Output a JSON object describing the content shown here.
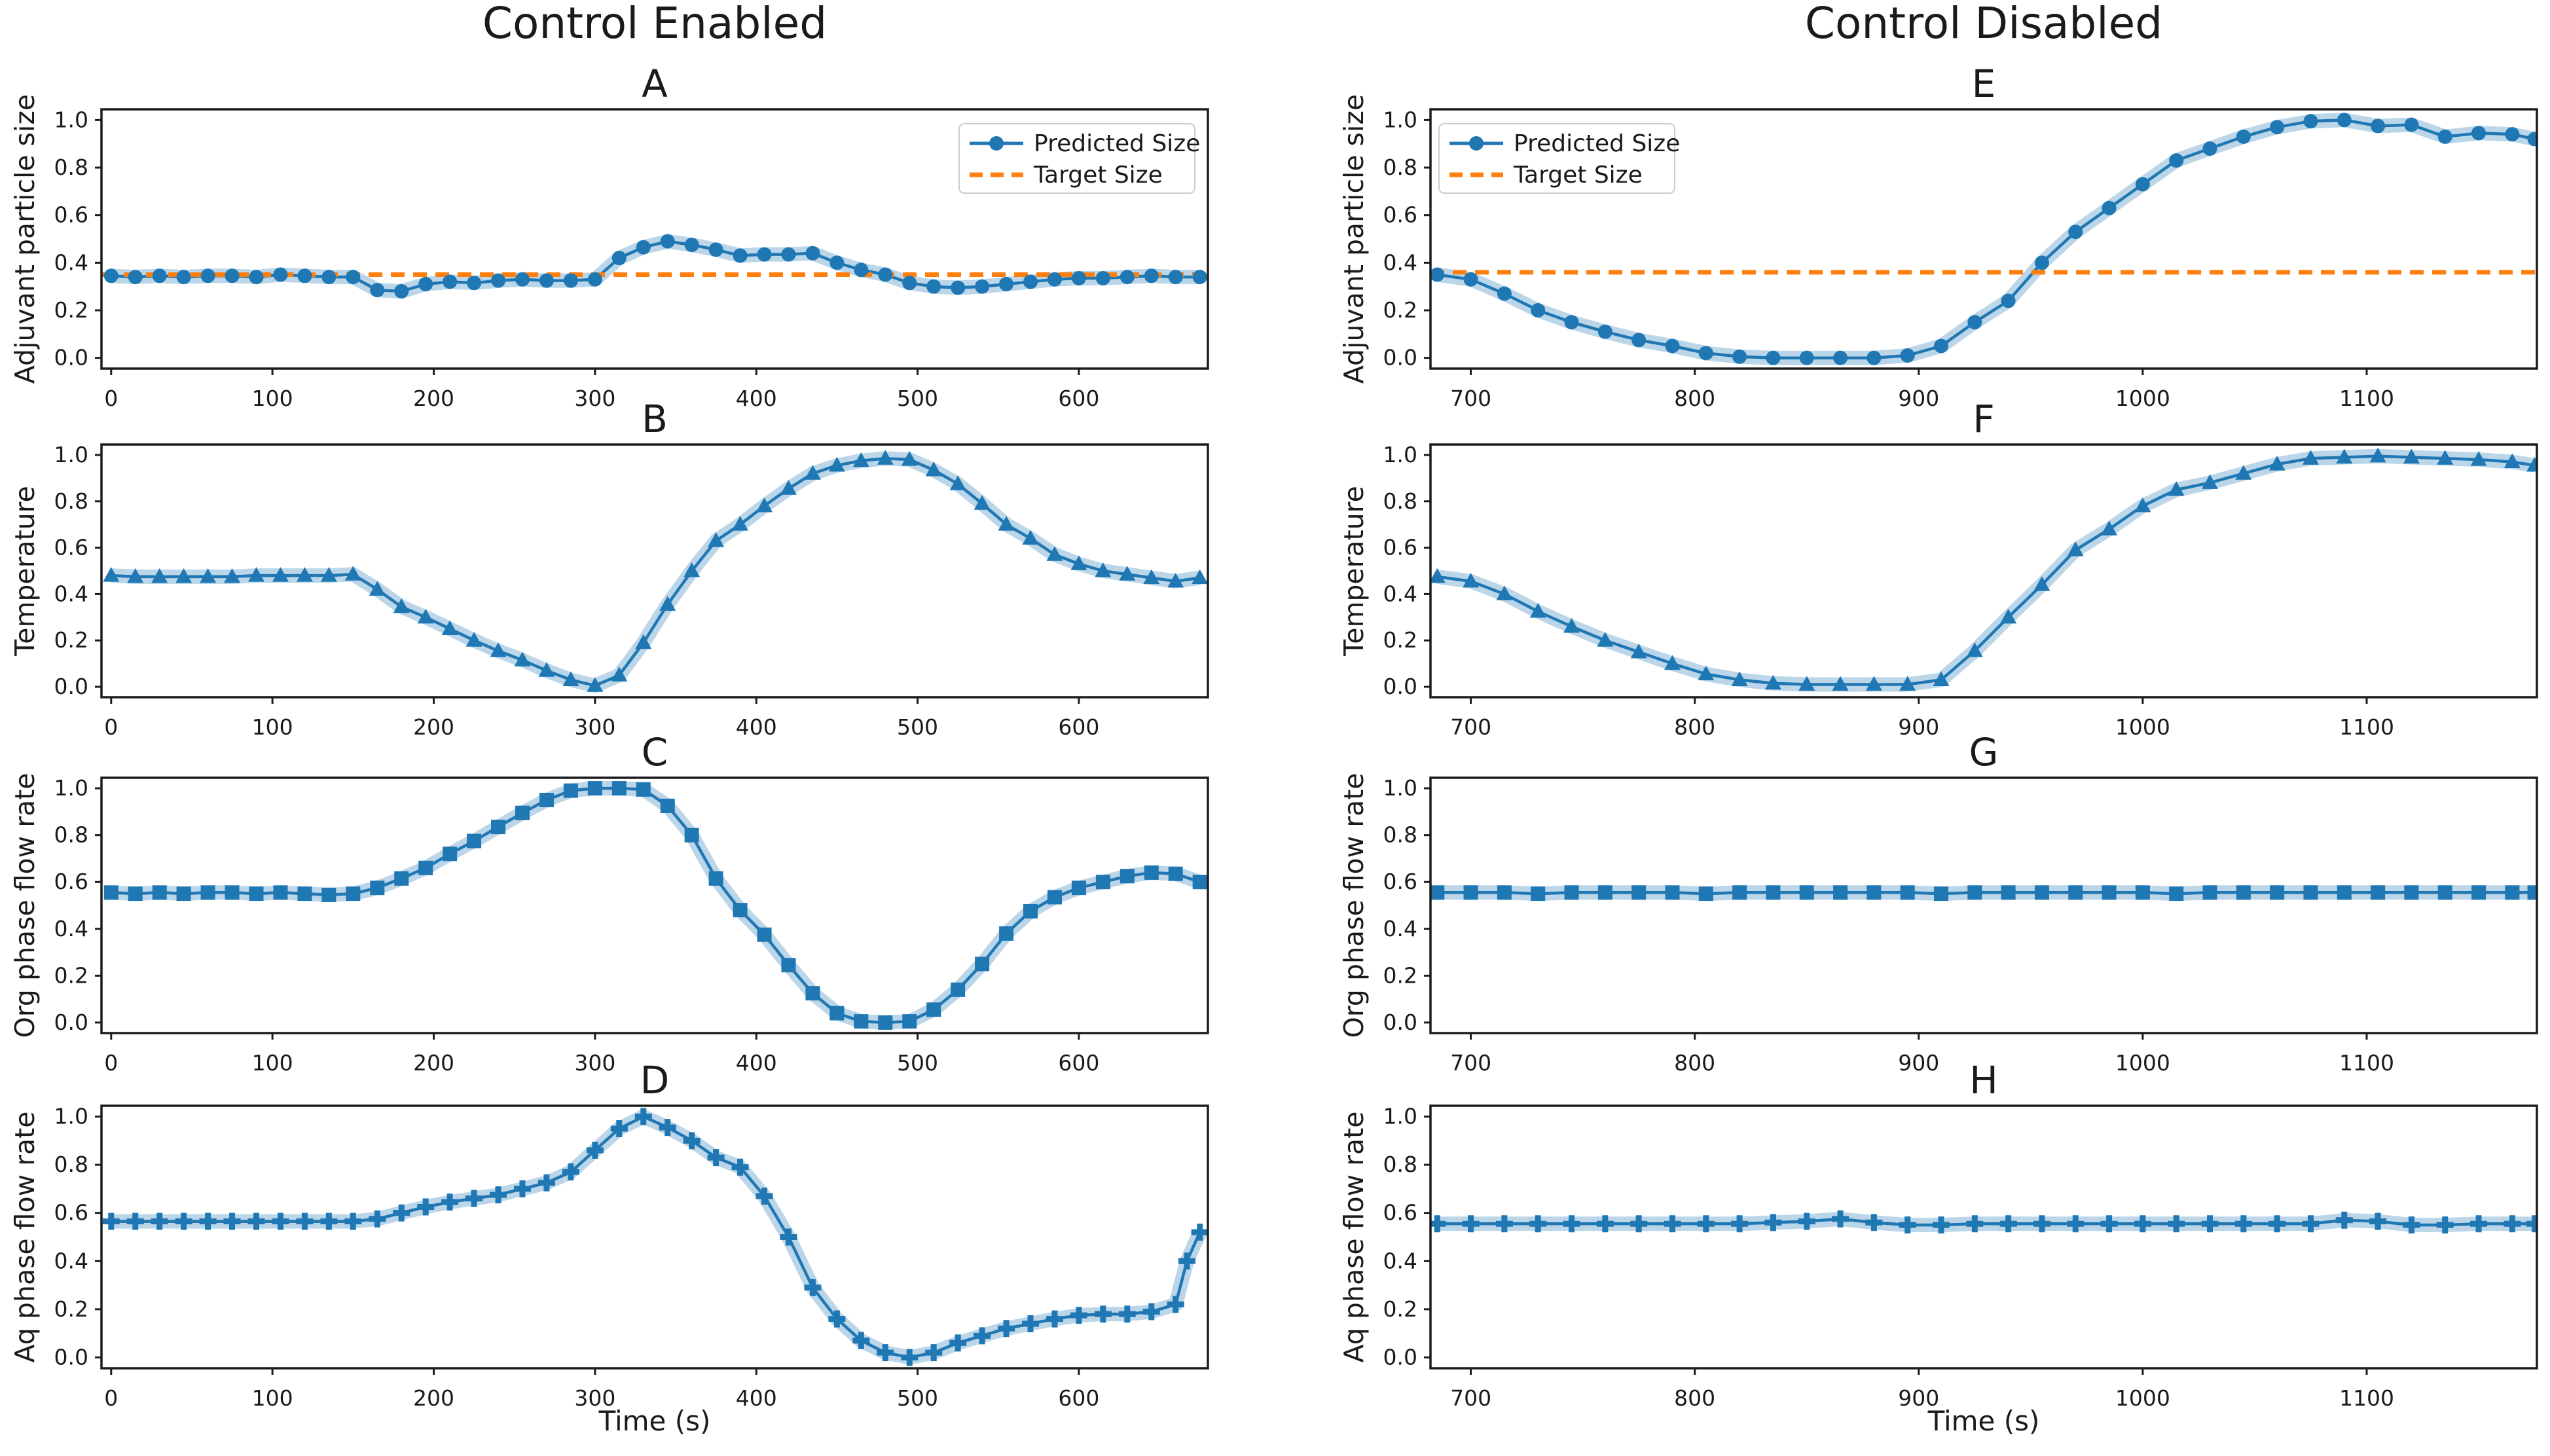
{
  "figure": {
    "columns": [
      {
        "title": "Control Enabled"
      },
      {
        "title": "Control Disabled"
      }
    ],
    "xlabel": "Time (s)",
    "legend_labels": {
      "predicted": "Predicted Size",
      "target": "Target Size"
    },
    "colors": {
      "line": "#1f77b4",
      "band": "rgba(31,119,180,0.30)",
      "target": "#ff7f0e",
      "axis": "#1c1c1c",
      "text": "#1a1a1a",
      "legend_border": "#cccccc"
    }
  },
  "chart_data": [
    {
      "id": "A",
      "panel_label": "A",
      "type": "line",
      "series_name": "Predicted Size",
      "ylabel": "Adjuvant particle size",
      "xlabel": null,
      "marker": "circle",
      "legend": true,
      "legend_pos": "ne",
      "xlim": [
        -6,
        680
      ],
      "ylim": [
        -0.045,
        1.045
      ],
      "xticks": [
        0,
        100,
        200,
        300,
        400,
        500,
        600
      ],
      "xticklabels": [
        "0",
        "100",
        "200",
        "300",
        "400",
        "500",
        "600"
      ],
      "yticks": [
        0.0,
        0.2,
        0.4,
        0.6,
        0.8,
        1.0
      ],
      "yticklabels": [
        "0.0",
        "0.2",
        "0.4",
        "0.6",
        "0.8",
        "1.0"
      ],
      "target": 0.35,
      "x": [
        0,
        15,
        30,
        45,
        60,
        75,
        90,
        105,
        120,
        135,
        150,
        165,
        180,
        195,
        210,
        225,
        240,
        255,
        270,
        285,
        300,
        315,
        330,
        345,
        360,
        375,
        390,
        405,
        420,
        435,
        450,
        465,
        480,
        495,
        510,
        525,
        540,
        555,
        570,
        585,
        600,
        615,
        630,
        645,
        660,
        675
      ],
      "y": [
        0.345,
        0.34,
        0.345,
        0.34,
        0.345,
        0.345,
        0.34,
        0.35,
        0.345,
        0.34,
        0.34,
        0.285,
        0.28,
        0.31,
        0.32,
        0.315,
        0.325,
        0.33,
        0.325,
        0.325,
        0.33,
        0.42,
        0.465,
        0.49,
        0.475,
        0.455,
        0.43,
        0.435,
        0.435,
        0.44,
        0.4,
        0.37,
        0.35,
        0.315,
        0.3,
        0.295,
        0.3,
        0.31,
        0.32,
        0.33,
        0.335,
        0.335,
        0.34,
        0.345,
        0.34,
        0.34
      ]
    },
    {
      "id": "B",
      "panel_label": "B",
      "type": "line",
      "series_name": "Temperature",
      "ylabel": "Temperature",
      "xlabel": null,
      "marker": "triangle",
      "legend": false,
      "legend_pos": null,
      "xlim": [
        -6,
        680
      ],
      "ylim": [
        -0.045,
        1.045
      ],
      "xticks": [
        0,
        100,
        200,
        300,
        400,
        500,
        600
      ],
      "xticklabels": [
        "0",
        "100",
        "200",
        "300",
        "400",
        "500",
        "600"
      ],
      "yticks": [
        0.0,
        0.2,
        0.4,
        0.6,
        0.8,
        1.0
      ],
      "yticklabels": [
        "0.0",
        "0.2",
        "0.4",
        "0.6",
        "0.8",
        "1.0"
      ],
      "target": null,
      "x": [
        0,
        15,
        30,
        45,
        60,
        75,
        90,
        105,
        120,
        135,
        150,
        165,
        180,
        195,
        210,
        225,
        240,
        255,
        270,
        285,
        300,
        315,
        330,
        345,
        360,
        375,
        390,
        405,
        420,
        435,
        450,
        465,
        480,
        495,
        510,
        525,
        540,
        555,
        570,
        585,
        600,
        615,
        630,
        645,
        660,
        675
      ],
      "y": [
        0.48,
        0.475,
        0.475,
        0.475,
        0.475,
        0.475,
        0.48,
        0.48,
        0.48,
        0.48,
        0.485,
        0.42,
        0.345,
        0.3,
        0.25,
        0.2,
        0.155,
        0.115,
        0.07,
        0.03,
        0.005,
        0.05,
        0.19,
        0.355,
        0.5,
        0.63,
        0.7,
        0.78,
        0.855,
        0.92,
        0.955,
        0.975,
        0.985,
        0.98,
        0.935,
        0.875,
        0.79,
        0.7,
        0.64,
        0.57,
        0.53,
        0.5,
        0.485,
        0.47,
        0.455,
        0.47
      ]
    },
    {
      "id": "C",
      "panel_label": "C",
      "type": "line",
      "series_name": "Org phase flow rate",
      "ylabel": "Org phase flow rate",
      "xlabel": null,
      "marker": "square",
      "legend": false,
      "legend_pos": null,
      "xlim": [
        -6,
        680
      ],
      "ylim": [
        -0.045,
        1.045
      ],
      "xticks": [
        0,
        100,
        200,
        300,
        400,
        500,
        600
      ],
      "xticklabels": [
        "0",
        "100",
        "200",
        "300",
        "400",
        "500",
        "600"
      ],
      "yticks": [
        0.0,
        0.2,
        0.4,
        0.6,
        0.8,
        1.0
      ],
      "yticklabels": [
        "0.0",
        "0.2",
        "0.4",
        "0.6",
        "0.8",
        "1.0"
      ],
      "target": null,
      "x": [
        0,
        15,
        30,
        45,
        60,
        75,
        90,
        105,
        120,
        135,
        150,
        165,
        180,
        195,
        210,
        225,
        240,
        255,
        270,
        285,
        300,
        315,
        330,
        345,
        360,
        375,
        390,
        405,
        420,
        435,
        450,
        465,
        480,
        495,
        510,
        525,
        540,
        555,
        570,
        585,
        600,
        615,
        630,
        645,
        660,
        675
      ],
      "y": [
        0.555,
        0.55,
        0.555,
        0.55,
        0.555,
        0.555,
        0.55,
        0.555,
        0.55,
        0.545,
        0.55,
        0.575,
        0.615,
        0.66,
        0.72,
        0.775,
        0.835,
        0.895,
        0.95,
        0.99,
        1.0,
        1.0,
        0.995,
        0.925,
        0.8,
        0.615,
        0.48,
        0.375,
        0.245,
        0.125,
        0.04,
        0.005,
        0.0,
        0.005,
        0.055,
        0.14,
        0.25,
        0.38,
        0.475,
        0.535,
        0.575,
        0.6,
        0.625,
        0.64,
        0.635,
        0.6
      ]
    },
    {
      "id": "D",
      "panel_label": "D",
      "type": "line",
      "series_name": "Aq phase flow rate",
      "ylabel": "Aq phase flow rate",
      "xlabel": "Time (s)",
      "marker": "plus",
      "legend": false,
      "legend_pos": null,
      "xlim": [
        -6,
        680
      ],
      "ylim": [
        -0.045,
        1.045
      ],
      "xticks": [
        0,
        100,
        200,
        300,
        400,
        500,
        600
      ],
      "xticklabels": [
        "0",
        "100",
        "200",
        "300",
        "400",
        "500",
        "600"
      ],
      "yticks": [
        0.0,
        0.2,
        0.4,
        0.6,
        0.8,
        1.0
      ],
      "yticklabels": [
        "0.0",
        "0.2",
        "0.4",
        "0.6",
        "0.8",
        "1.0"
      ],
      "target": null,
      "x": [
        0,
        15,
        30,
        45,
        60,
        75,
        90,
        105,
        120,
        135,
        150,
        165,
        180,
        195,
        210,
        225,
        240,
        255,
        270,
        285,
        300,
        315,
        330,
        345,
        360,
        375,
        390,
        405,
        420,
        435,
        450,
        465,
        480,
        495,
        510,
        525,
        540,
        555,
        570,
        585,
        600,
        615,
        630,
        645,
        660,
        667,
        675
      ],
      "y": [
        0.565,
        0.565,
        0.565,
        0.565,
        0.565,
        0.565,
        0.565,
        0.565,
        0.565,
        0.565,
        0.565,
        0.575,
        0.6,
        0.625,
        0.645,
        0.66,
        0.675,
        0.7,
        0.725,
        0.77,
        0.86,
        0.95,
        1.0,
        0.955,
        0.9,
        0.83,
        0.79,
        0.67,
        0.5,
        0.29,
        0.16,
        0.07,
        0.02,
        0.0,
        0.02,
        0.06,
        0.09,
        0.12,
        0.14,
        0.16,
        0.175,
        0.18,
        0.18,
        0.19,
        0.22,
        0.4,
        0.52
      ]
    },
    {
      "id": "E",
      "panel_label": "E",
      "type": "line",
      "series_name": "Predicted Size",
      "ylabel": "Adjuvant particle size",
      "xlabel": null,
      "marker": "circle",
      "legend": true,
      "legend_pos": "nw",
      "xlim": [
        682,
        1176
      ],
      "ylim": [
        -0.045,
        1.045
      ],
      "xticks": [
        700,
        800,
        900,
        1000,
        1100
      ],
      "xticklabels": [
        "700",
        "800",
        "900",
        "1000",
        "1100"
      ],
      "yticks": [
        0.0,
        0.2,
        0.4,
        0.6,
        0.8,
        1.0
      ],
      "yticklabels": [
        "0.0",
        "0.2",
        "0.4",
        "0.6",
        "0.8",
        "1.0"
      ],
      "target": 0.36,
      "x": [
        685,
        700,
        715,
        730,
        745,
        760,
        775,
        790,
        805,
        820,
        835,
        850,
        865,
        880,
        895,
        910,
        925,
        940,
        955,
        970,
        985,
        1000,
        1015,
        1030,
        1045,
        1060,
        1075,
        1090,
        1105,
        1120,
        1135,
        1150,
        1165,
        1175
      ],
      "y": [
        0.35,
        0.33,
        0.27,
        0.2,
        0.15,
        0.11,
        0.075,
        0.05,
        0.02,
        0.005,
        0.0,
        0.0,
        0.0,
        0.0,
        0.01,
        0.05,
        0.15,
        0.24,
        0.4,
        0.53,
        0.63,
        0.73,
        0.83,
        0.88,
        0.93,
        0.97,
        0.995,
        1.0,
        0.975,
        0.98,
        0.93,
        0.945,
        0.94,
        0.92
      ]
    },
    {
      "id": "F",
      "panel_label": "F",
      "type": "line",
      "series_name": "Temperature",
      "ylabel": "Temperature",
      "xlabel": null,
      "marker": "triangle",
      "legend": false,
      "legend_pos": null,
      "xlim": [
        682,
        1176
      ],
      "ylim": [
        -0.045,
        1.045
      ],
      "xticks": [
        700,
        800,
        900,
        1000,
        1100
      ],
      "xticklabels": [
        "700",
        "800",
        "900",
        "1000",
        "1100"
      ],
      "yticks": [
        0.0,
        0.2,
        0.4,
        0.6,
        0.8,
        1.0
      ],
      "yticklabels": [
        "0.0",
        "0.2",
        "0.4",
        "0.6",
        "0.8",
        "1.0"
      ],
      "target": null,
      "x": [
        685,
        700,
        715,
        730,
        745,
        760,
        775,
        790,
        805,
        820,
        835,
        850,
        865,
        880,
        895,
        910,
        925,
        940,
        955,
        970,
        985,
        1000,
        1015,
        1030,
        1045,
        1060,
        1075,
        1090,
        1105,
        1120,
        1135,
        1150,
        1165,
        1175
      ],
      "y": [
        0.475,
        0.455,
        0.4,
        0.325,
        0.26,
        0.2,
        0.15,
        0.1,
        0.055,
        0.03,
        0.015,
        0.01,
        0.01,
        0.01,
        0.01,
        0.03,
        0.155,
        0.3,
        0.44,
        0.59,
        0.68,
        0.78,
        0.85,
        0.88,
        0.92,
        0.96,
        0.985,
        0.99,
        0.995,
        0.99,
        0.985,
        0.98,
        0.97,
        0.955
      ]
    },
    {
      "id": "G",
      "panel_label": "G",
      "type": "line",
      "series_name": "Org phase flow rate",
      "ylabel": "Org phase flow rate",
      "xlabel": null,
      "marker": "square",
      "legend": false,
      "legend_pos": null,
      "xlim": [
        682,
        1176
      ],
      "ylim": [
        -0.045,
        1.045
      ],
      "xticks": [
        700,
        800,
        900,
        1000,
        1100
      ],
      "xticklabels": [
        "700",
        "800",
        "900",
        "1000",
        "1100"
      ],
      "yticks": [
        0.0,
        0.2,
        0.4,
        0.6,
        0.8,
        1.0
      ],
      "yticklabels": [
        "0.0",
        "0.2",
        "0.4",
        "0.6",
        "0.8",
        "1.0"
      ],
      "target": null,
      "x": [
        685,
        700,
        715,
        730,
        745,
        760,
        775,
        790,
        805,
        820,
        835,
        850,
        865,
        880,
        895,
        910,
        925,
        940,
        955,
        970,
        985,
        1000,
        1015,
        1030,
        1045,
        1060,
        1075,
        1090,
        1105,
        1120,
        1135,
        1150,
        1165,
        1175
      ],
      "y": [
        0.555,
        0.555,
        0.555,
        0.55,
        0.555,
        0.555,
        0.555,
        0.555,
        0.55,
        0.555,
        0.555,
        0.555,
        0.555,
        0.555,
        0.555,
        0.55,
        0.555,
        0.555,
        0.555,
        0.555,
        0.555,
        0.555,
        0.55,
        0.555,
        0.555,
        0.555,
        0.555,
        0.555,
        0.555,
        0.555,
        0.555,
        0.555,
        0.555,
        0.555
      ]
    },
    {
      "id": "H",
      "panel_label": "H",
      "type": "line",
      "series_name": "Aq phase flow rate",
      "ylabel": "Aq phase flow rate",
      "xlabel": "Time (s)",
      "marker": "plus",
      "legend": false,
      "legend_pos": null,
      "xlim": [
        682,
        1176
      ],
      "ylim": [
        -0.045,
        1.045
      ],
      "xticks": [
        700,
        800,
        900,
        1000,
        1100
      ],
      "xticklabels": [
        "700",
        "800",
        "900",
        "1000",
        "1100"
      ],
      "yticks": [
        0.0,
        0.2,
        0.4,
        0.6,
        0.8,
        1.0
      ],
      "yticklabels": [
        "0.0",
        "0.2",
        "0.4",
        "0.6",
        "0.8",
        "1.0"
      ],
      "target": null,
      "x": [
        685,
        700,
        715,
        730,
        745,
        760,
        775,
        790,
        805,
        820,
        835,
        850,
        865,
        880,
        895,
        910,
        925,
        940,
        955,
        970,
        985,
        1000,
        1015,
        1030,
        1045,
        1060,
        1075,
        1090,
        1105,
        1120,
        1135,
        1150,
        1165,
        1175
      ],
      "y": [
        0.555,
        0.555,
        0.555,
        0.555,
        0.555,
        0.555,
        0.555,
        0.555,
        0.555,
        0.555,
        0.56,
        0.565,
        0.575,
        0.56,
        0.55,
        0.55,
        0.555,
        0.555,
        0.555,
        0.555,
        0.555,
        0.555,
        0.555,
        0.555,
        0.555,
        0.555,
        0.555,
        0.57,
        0.565,
        0.55,
        0.55,
        0.555,
        0.555,
        0.555
      ]
    }
  ]
}
